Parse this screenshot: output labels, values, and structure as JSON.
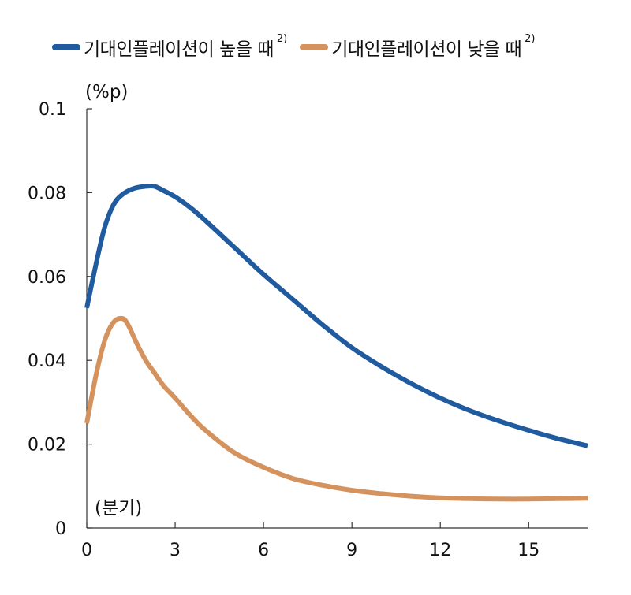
{
  "legend": {
    "items": [
      {
        "label": "기대인플레이션이 높을 때",
        "sup": "2)",
        "color": "#1F5B9E"
      },
      {
        "label": "기대인플레이션이 낮을 때",
        "sup": "2)",
        "color": "#D4935E"
      }
    ]
  },
  "chart_data": {
    "type": "line",
    "ylabel": "(%p)",
    "xlabel": "(분기)",
    "xlim": [
      0,
      17
    ],
    "ylim": [
      0,
      0.1
    ],
    "x_ticks": [
      0,
      3,
      6,
      9,
      12,
      15
    ],
    "x_tick_labels": [
      "0",
      "3",
      "6",
      "9",
      "12",
      "15"
    ],
    "y_ticks": [
      0,
      0.02,
      0.04,
      0.06,
      0.08,
      0.1
    ],
    "y_tick_labels": [
      "0",
      "0.02",
      "0.04",
      "0.06",
      "0.08",
      "0.1"
    ],
    "grid": false,
    "legend_position": "top",
    "series": [
      {
        "name": "기대인플레이션이 높을 때",
        "color": "#1F5B9E",
        "x": [
          0,
          0.3,
          0.6,
          0.9,
          1.2,
          1.6,
          2.0,
          2.3,
          2.6,
          3.0,
          3.5,
          4.0,
          5.0,
          6.0,
          7.0,
          8.0,
          9.0,
          10.0,
          11.0,
          12.0,
          13.0,
          14.0,
          15.0,
          16.0,
          17.0
        ],
        "values": [
          0.0525,
          0.0625,
          0.0715,
          0.077,
          0.0795,
          0.081,
          0.0815,
          0.0815,
          0.0805,
          0.079,
          0.0765,
          0.0735,
          0.067,
          0.0605,
          0.0545,
          0.0485,
          0.043,
          0.0385,
          0.0345,
          0.031,
          0.028,
          0.0255,
          0.0233,
          0.0213,
          0.0196
        ]
      },
      {
        "name": "기대인플레이션이 낮을 때",
        "color": "#D4935E",
        "x": [
          0,
          0.3,
          0.6,
          0.9,
          1.2,
          1.4,
          1.7,
          2.0,
          2.3,
          2.6,
          3.0,
          3.5,
          4.0,
          5.0,
          6.0,
          7.0,
          8.0,
          9.0,
          10.0,
          11.0,
          12.0,
          13.0,
          14.0,
          15.0,
          16.0,
          17.0
        ],
        "values": [
          0.025,
          0.036,
          0.0445,
          0.049,
          0.05,
          0.0485,
          0.044,
          0.04,
          0.037,
          0.034,
          0.031,
          0.027,
          0.0235,
          0.018,
          0.0145,
          0.0118,
          0.0102,
          0.009,
          0.0082,
          0.0076,
          0.0072,
          0.007,
          0.0069,
          0.0069,
          0.007,
          0.0071
        ]
      }
    ]
  }
}
